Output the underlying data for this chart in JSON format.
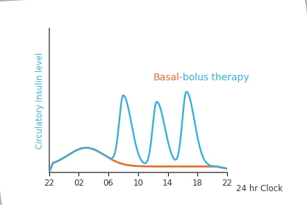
{
  "xlabel": "24 hr Clock",
  "ylabel": "Circulatory Insulin level",
  "ylabel_color": "#3ab0d8",
  "x_ticks": [
    0,
    4,
    8,
    12,
    16,
    20,
    24
  ],
  "x_tick_labels": [
    "22",
    "02",
    "06",
    "10",
    "14",
    "18",
    "22"
  ],
  "annotation_basal": "Basal-",
  "annotation_bolus": "bolus therapy",
  "annotation_basal_color": "#e07030",
  "annotation_bolus_color": "#3ab0d8",
  "basal_color": "#e07030",
  "bolus_color": "#3ab0d8",
  "background_color": "#ffffff",
  "border_color": "#aaaaaa",
  "xlim": [
    0,
    26
  ],
  "ylim": [
    0,
    1.0
  ]
}
